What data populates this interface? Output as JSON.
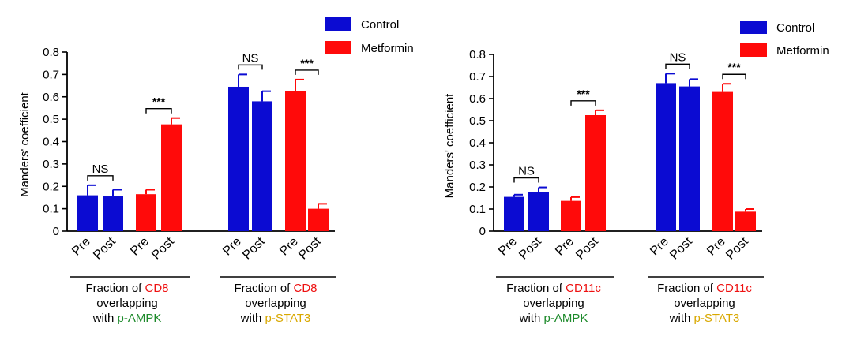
{
  "colors": {
    "control": "#0b0bd2",
    "metformin": "#ff0a0a",
    "axis": "#000000",
    "highlight_red": "#ee1111",
    "ampk_green": "#1d8a2b",
    "stat3_yellow": "#d9a800"
  },
  "legend": {
    "control": "Control",
    "metformin": "Metformin"
  },
  "chart_data": [
    {
      "type": "bar",
      "panel": "left",
      "ylabel": "Manders' coefficient",
      "ylim": [
        0,
        0.8
      ],
      "yticks": [
        "0",
        "0.1",
        "0.2",
        "0.3",
        "0.4",
        "0.5",
        "0.6",
        "0.7",
        "0.8"
      ],
      "groups": [
        {
          "caption": {
            "line1_prefix": "Fraction of ",
            "line1_highlight": "CD8",
            "line2": "overlapping",
            "line3_prefix": "with ",
            "line3_highlight": "p-AMPK",
            "line3_color": "ampk_green"
          },
          "bars": [
            {
              "series": "Control",
              "label": "Pre",
              "value": 0.16,
              "error": 0.045
            },
            {
              "series": "Control",
              "label": "Post",
              "value": 0.155,
              "error": 0.03
            },
            {
              "series": "Metformin",
              "label": "Pre",
              "value": 0.165,
              "error": 0.02
            },
            {
              "series": "Metformin",
              "label": "Post",
              "value": 0.477,
              "error": 0.028
            }
          ],
          "significance": [
            {
              "pair": [
                0,
                1
              ],
              "label": "NS"
            },
            {
              "pair": [
                2,
                3
              ],
              "label": "***"
            }
          ]
        },
        {
          "caption": {
            "line1_prefix": "Fraction of ",
            "line1_highlight": "CD8",
            "line2": "overlapping",
            "line3_prefix": "with ",
            "line3_highlight": "p-STAT3",
            "line3_color": "stat3_yellow"
          },
          "bars": [
            {
              "series": "Control",
              "label": "Pre",
              "value": 0.645,
              "error": 0.055
            },
            {
              "series": "Control",
              "label": "Post",
              "value": 0.58,
              "error": 0.045
            },
            {
              "series": "Metformin",
              "label": "Pre",
              "value": 0.627,
              "error": 0.05
            },
            {
              "series": "Metformin",
              "label": "Post",
              "value": 0.1,
              "error": 0.022
            }
          ],
          "significance": [
            {
              "pair": [
                0,
                1
              ],
              "label": "NS"
            },
            {
              "pair": [
                2,
                3
              ],
              "label": "***"
            }
          ]
        }
      ]
    },
    {
      "type": "bar",
      "panel": "right",
      "ylabel": "Manders' coefficient",
      "ylim": [
        0,
        0.8
      ],
      "yticks": [
        "0",
        "0.1",
        "0.2",
        "0.3",
        "0.4",
        "0.5",
        "0.6",
        "0.7",
        "0.8"
      ],
      "groups": [
        {
          "caption": {
            "line1_prefix": "Fraction of ",
            "line1_highlight": "CD11c",
            "line2": "overlapping",
            "line3_prefix": "with ",
            "line3_highlight": "p-AMPK",
            "line3_color": "ampk_green"
          },
          "bars": [
            {
              "series": "Control",
              "label": "Pre",
              "value": 0.155,
              "error": 0.01
            },
            {
              "series": "Control",
              "label": "Post",
              "value": 0.178,
              "error": 0.02
            },
            {
              "series": "Metformin",
              "label": "Pre",
              "value": 0.137,
              "error": 0.017
            },
            {
              "series": "Metformin",
              "label": "Post",
              "value": 0.525,
              "error": 0.022
            }
          ],
          "significance": [
            {
              "pair": [
                0,
                1
              ],
              "label": "NS"
            },
            {
              "pair": [
                2,
                3
              ],
              "label": "***"
            }
          ]
        },
        {
          "caption": {
            "line1_prefix": "Fraction of ",
            "line1_highlight": "CD11c",
            "line2": "overlapping",
            "line3_prefix": "with ",
            "line3_highlight": "p-STAT3",
            "line3_color": "stat3_yellow"
          },
          "bars": [
            {
              "series": "Control",
              "label": "Pre",
              "value": 0.67,
              "error": 0.043
            },
            {
              "series": "Control",
              "label": "Post",
              "value": 0.655,
              "error": 0.033
            },
            {
              "series": "Metformin",
              "label": "Pre",
              "value": 0.63,
              "error": 0.037
            },
            {
              "series": "Metformin",
              "label": "Post",
              "value": 0.088,
              "error": 0.012
            }
          ],
          "significance": [
            {
              "pair": [
                0,
                1
              ],
              "label": "NS"
            },
            {
              "pair": [
                2,
                3
              ],
              "label": "***"
            }
          ]
        }
      ]
    }
  ]
}
